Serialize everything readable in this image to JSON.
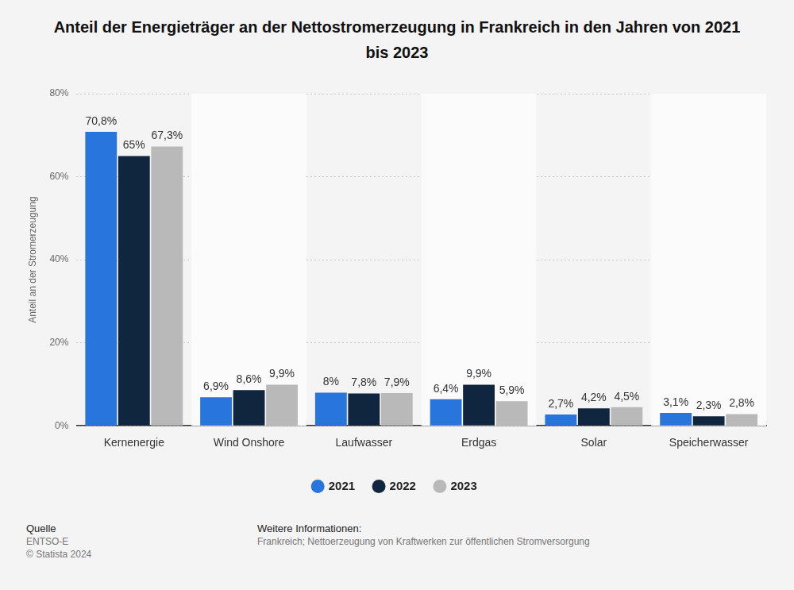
{
  "chart_data": {
    "type": "bar",
    "title": "Anteil der Energieträger an der Nettostromerzeugung in Frankreich in den Jahren von 2021 bis 2023",
    "y_label": "Anteil an der Stromerzeugung",
    "categories": [
      "Kernenergie",
      "Wind Onshore",
      "Laufwasser",
      "Erdgas",
      "Solar",
      "Speicherwasser"
    ],
    "series": [
      {
        "name": "2021",
        "color": "#2876dd",
        "values": [
          70.8,
          6.9,
          8,
          6.4,
          2.7,
          3.1
        ],
        "value_labels": [
          "70,8%",
          "6,9%",
          "8%",
          "6,4%",
          "2,7%",
          "3,1%"
        ]
      },
      {
        "name": "2022",
        "color": "#10263f",
        "values": [
          65,
          8.6,
          7.8,
          9.9,
          4.2,
          2.3
        ],
        "value_labels": [
          "65%",
          "8,6%",
          "7,8%",
          "9,9%",
          "4,2%",
          "2,3%"
        ]
      },
      {
        "name": "2023",
        "color": "#b9b9b9",
        "values": [
          67.3,
          9.9,
          7.9,
          5.9,
          4.5,
          2.8
        ],
        "value_labels": [
          "67,3%",
          "9,9%",
          "7,9%",
          "5,9%",
          "4,5%",
          "2,8%"
        ]
      }
    ],
    "ylim": [
      0,
      80
    ],
    "yticks": [
      {
        "value": 0,
        "label": "0%"
      },
      {
        "value": 20,
        "label": "20%"
      },
      {
        "value": 40,
        "label": "40%"
      },
      {
        "value": 60,
        "label": "60%"
      },
      {
        "value": 80,
        "label": "80%"
      }
    ],
    "grid": true,
    "legend": "bottom",
    "data_labels": true,
    "source_heading": "Quelle",
    "source": [
      "ENTSO-E",
      "© Statista 2024"
    ],
    "info_heading": "Weitere Informationen:",
    "info": "Frankreich; Nettoerzeugung von Kraftwerken zur öffentlichen Stromversorgung"
  }
}
